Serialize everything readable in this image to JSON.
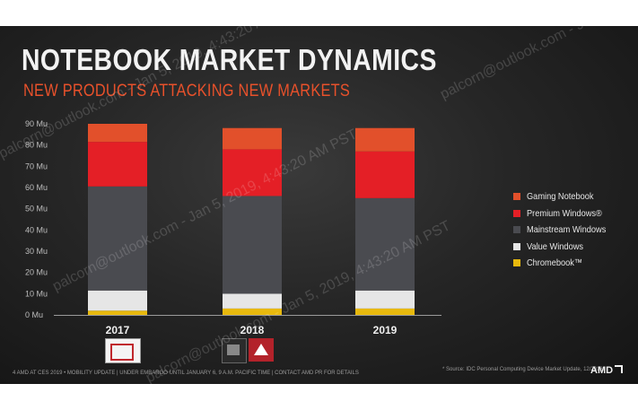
{
  "slide": {
    "title": "NOTEBOOK MARKET DYNAMICS",
    "subtitle": "NEW PRODUCTS ATTACKING NEW MARKETS",
    "footer_left": "4   AMD AT CES 2019 • MOBILITY UPDATE  |  UNDER EMBARGO UNTIL JANUARY 6, 9 A.M. PACIFIC TIME  |  CONTACT AMD PR FOR DETAILS",
    "footer_source": "* Source: IDC Personal Computing Device Market Update, 12/2018.",
    "brand": "AMD",
    "watermark": "palcorn@outlook.com - Jan 5, 2019, 4:43:20 AM PST",
    "logos": [
      "amd-athlon-logo",
      "amd-ryzen-logo",
      "amd-radeon-logo"
    ]
  },
  "chart_data": {
    "type": "bar",
    "stacked": true,
    "categories": [
      "2017",
      "2018",
      "2019"
    ],
    "ylim": [
      0,
      90
    ],
    "yticks": [
      0,
      10,
      20,
      30,
      40,
      50,
      60,
      70,
      80,
      90
    ],
    "ytick_labels": [
      "0 Mu",
      "10 Mu",
      "20 Mu",
      "30 Mu",
      "40 Mu",
      "50 Mu",
      "60 Mu",
      "70 Mu",
      "80 Mu",
      "90 Mu"
    ],
    "legend_position": "right",
    "series": [
      {
        "name": "Chromebook™",
        "color": "#e8b90d",
        "values": [
          2,
          3,
          3
        ]
      },
      {
        "name": "Value Windows",
        "color": "#e6e6e6",
        "values": [
          9.5,
          7,
          8.5
        ]
      },
      {
        "name": "Mainstream Windows",
        "color": "#4a4b50",
        "values": [
          49,
          46,
          43.5
        ]
      },
      {
        "name": "Premium Windows®",
        "color": "#e41f26",
        "values": [
          21,
          22,
          22
        ]
      },
      {
        "name": "Gaming Notebook",
        "color": "#e2502b",
        "values": [
          8.5,
          10,
          11
        ]
      }
    ]
  }
}
